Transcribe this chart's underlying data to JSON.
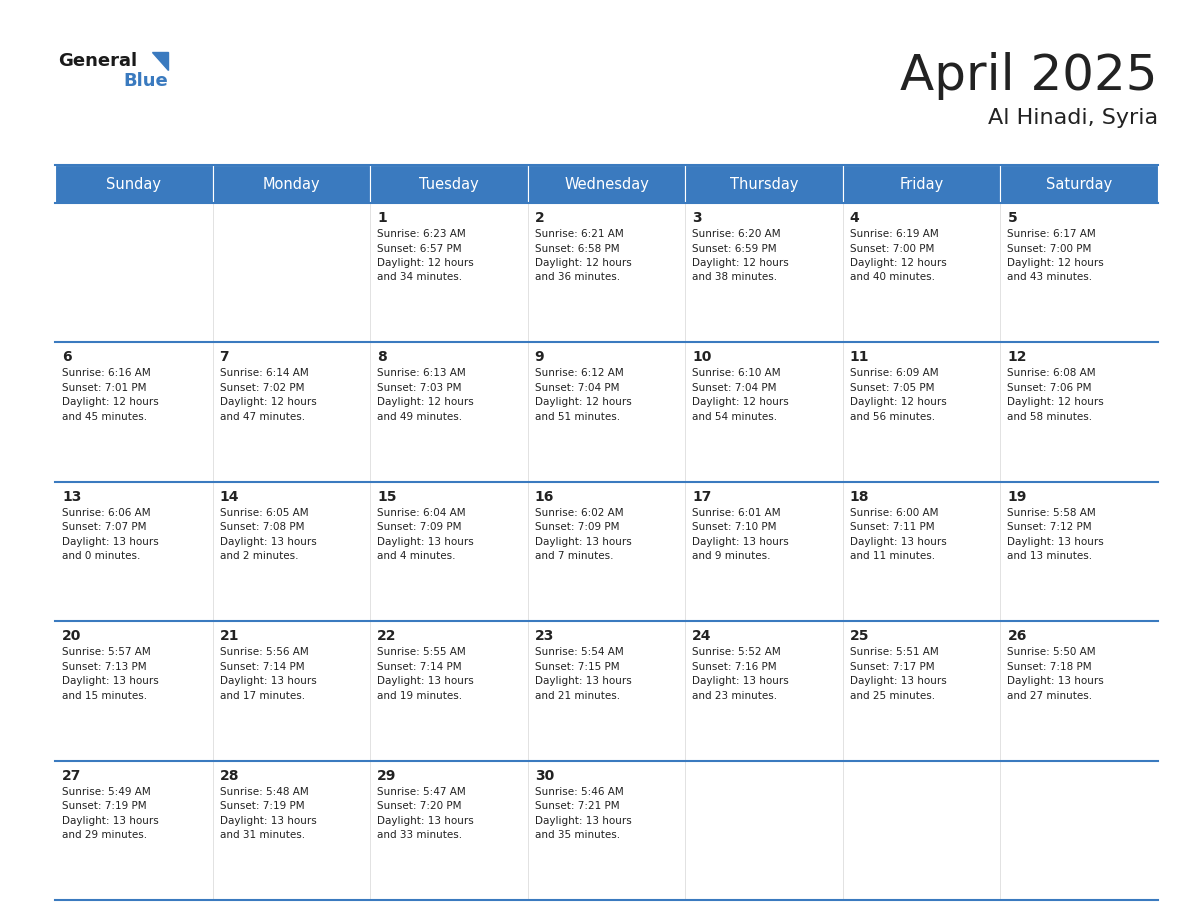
{
  "title": "April 2025",
  "subtitle": "Al Hinadi, Syria",
  "header_bg_color": "#3a7abf",
  "header_text_color": "#ffffff",
  "row_line_color": "#3a7abf",
  "cell_bg_color": "#ffffff",
  "alt_cell_bg_color": "#f0f4f8",
  "text_color": "#222222",
  "days_of_week": [
    "Sunday",
    "Monday",
    "Tuesday",
    "Wednesday",
    "Thursday",
    "Friday",
    "Saturday"
  ],
  "weeks": [
    [
      {
        "day": "",
        "sunrise": "",
        "sunset": "",
        "daylight_h": "",
        "daylight_m": ""
      },
      {
        "day": "",
        "sunrise": "",
        "sunset": "",
        "daylight_h": "",
        "daylight_m": ""
      },
      {
        "day": "1",
        "sunrise": "Sunrise: 6:23 AM",
        "sunset": "Sunset: 6:57 PM",
        "daylight_h": "Daylight: 12 hours",
        "daylight_m": "and 34 minutes."
      },
      {
        "day": "2",
        "sunrise": "Sunrise: 6:21 AM",
        "sunset": "Sunset: 6:58 PM",
        "daylight_h": "Daylight: 12 hours",
        "daylight_m": "and 36 minutes."
      },
      {
        "day": "3",
        "sunrise": "Sunrise: 6:20 AM",
        "sunset": "Sunset: 6:59 PM",
        "daylight_h": "Daylight: 12 hours",
        "daylight_m": "and 38 minutes."
      },
      {
        "day": "4",
        "sunrise": "Sunrise: 6:19 AM",
        "sunset": "Sunset: 7:00 PM",
        "daylight_h": "Daylight: 12 hours",
        "daylight_m": "and 40 minutes."
      },
      {
        "day": "5",
        "sunrise": "Sunrise: 6:17 AM",
        "sunset": "Sunset: 7:00 PM",
        "daylight_h": "Daylight: 12 hours",
        "daylight_m": "and 43 minutes."
      }
    ],
    [
      {
        "day": "6",
        "sunrise": "Sunrise: 6:16 AM",
        "sunset": "Sunset: 7:01 PM",
        "daylight_h": "Daylight: 12 hours",
        "daylight_m": "and 45 minutes."
      },
      {
        "day": "7",
        "sunrise": "Sunrise: 6:14 AM",
        "sunset": "Sunset: 7:02 PM",
        "daylight_h": "Daylight: 12 hours",
        "daylight_m": "and 47 minutes."
      },
      {
        "day": "8",
        "sunrise": "Sunrise: 6:13 AM",
        "sunset": "Sunset: 7:03 PM",
        "daylight_h": "Daylight: 12 hours",
        "daylight_m": "and 49 minutes."
      },
      {
        "day": "9",
        "sunrise": "Sunrise: 6:12 AM",
        "sunset": "Sunset: 7:04 PM",
        "daylight_h": "Daylight: 12 hours",
        "daylight_m": "and 51 minutes."
      },
      {
        "day": "10",
        "sunrise": "Sunrise: 6:10 AM",
        "sunset": "Sunset: 7:04 PM",
        "daylight_h": "Daylight: 12 hours",
        "daylight_m": "and 54 minutes."
      },
      {
        "day": "11",
        "sunrise": "Sunrise: 6:09 AM",
        "sunset": "Sunset: 7:05 PM",
        "daylight_h": "Daylight: 12 hours",
        "daylight_m": "and 56 minutes."
      },
      {
        "day": "12",
        "sunrise": "Sunrise: 6:08 AM",
        "sunset": "Sunset: 7:06 PM",
        "daylight_h": "Daylight: 12 hours",
        "daylight_m": "and 58 minutes."
      }
    ],
    [
      {
        "day": "13",
        "sunrise": "Sunrise: 6:06 AM",
        "sunset": "Sunset: 7:07 PM",
        "daylight_h": "Daylight: 13 hours",
        "daylight_m": "and 0 minutes."
      },
      {
        "day": "14",
        "sunrise": "Sunrise: 6:05 AM",
        "sunset": "Sunset: 7:08 PM",
        "daylight_h": "Daylight: 13 hours",
        "daylight_m": "and 2 minutes."
      },
      {
        "day": "15",
        "sunrise": "Sunrise: 6:04 AM",
        "sunset": "Sunset: 7:09 PM",
        "daylight_h": "Daylight: 13 hours",
        "daylight_m": "and 4 minutes."
      },
      {
        "day": "16",
        "sunrise": "Sunrise: 6:02 AM",
        "sunset": "Sunset: 7:09 PM",
        "daylight_h": "Daylight: 13 hours",
        "daylight_m": "and 7 minutes."
      },
      {
        "day": "17",
        "sunrise": "Sunrise: 6:01 AM",
        "sunset": "Sunset: 7:10 PM",
        "daylight_h": "Daylight: 13 hours",
        "daylight_m": "and 9 minutes."
      },
      {
        "day": "18",
        "sunrise": "Sunrise: 6:00 AM",
        "sunset": "Sunset: 7:11 PM",
        "daylight_h": "Daylight: 13 hours",
        "daylight_m": "and 11 minutes."
      },
      {
        "day": "19",
        "sunrise": "Sunrise: 5:58 AM",
        "sunset": "Sunset: 7:12 PM",
        "daylight_h": "Daylight: 13 hours",
        "daylight_m": "and 13 minutes."
      }
    ],
    [
      {
        "day": "20",
        "sunrise": "Sunrise: 5:57 AM",
        "sunset": "Sunset: 7:13 PM",
        "daylight_h": "Daylight: 13 hours",
        "daylight_m": "and 15 minutes."
      },
      {
        "day": "21",
        "sunrise": "Sunrise: 5:56 AM",
        "sunset": "Sunset: 7:14 PM",
        "daylight_h": "Daylight: 13 hours",
        "daylight_m": "and 17 minutes."
      },
      {
        "day": "22",
        "sunrise": "Sunrise: 5:55 AM",
        "sunset": "Sunset: 7:14 PM",
        "daylight_h": "Daylight: 13 hours",
        "daylight_m": "and 19 minutes."
      },
      {
        "day": "23",
        "sunrise": "Sunrise: 5:54 AM",
        "sunset": "Sunset: 7:15 PM",
        "daylight_h": "Daylight: 13 hours",
        "daylight_m": "and 21 minutes."
      },
      {
        "day": "24",
        "sunrise": "Sunrise: 5:52 AM",
        "sunset": "Sunset: 7:16 PM",
        "daylight_h": "Daylight: 13 hours",
        "daylight_m": "and 23 minutes."
      },
      {
        "day": "25",
        "sunrise": "Sunrise: 5:51 AM",
        "sunset": "Sunset: 7:17 PM",
        "daylight_h": "Daylight: 13 hours",
        "daylight_m": "and 25 minutes."
      },
      {
        "day": "26",
        "sunrise": "Sunrise: 5:50 AM",
        "sunset": "Sunset: 7:18 PM",
        "daylight_h": "Daylight: 13 hours",
        "daylight_m": "and 27 minutes."
      }
    ],
    [
      {
        "day": "27",
        "sunrise": "Sunrise: 5:49 AM",
        "sunset": "Sunset: 7:19 PM",
        "daylight_h": "Daylight: 13 hours",
        "daylight_m": "and 29 minutes."
      },
      {
        "day": "28",
        "sunrise": "Sunrise: 5:48 AM",
        "sunset": "Sunset: 7:19 PM",
        "daylight_h": "Daylight: 13 hours",
        "daylight_m": "and 31 minutes."
      },
      {
        "day": "29",
        "sunrise": "Sunrise: 5:47 AM",
        "sunset": "Sunset: 7:20 PM",
        "daylight_h": "Daylight: 13 hours",
        "daylight_m": "and 33 minutes."
      },
      {
        "day": "30",
        "sunrise": "Sunrise: 5:46 AM",
        "sunset": "Sunset: 7:21 PM",
        "daylight_h": "Daylight: 13 hours",
        "daylight_m": "and 35 minutes."
      },
      {
        "day": "",
        "sunrise": "",
        "sunset": "",
        "daylight_h": "",
        "daylight_m": ""
      },
      {
        "day": "",
        "sunrise": "",
        "sunset": "",
        "daylight_h": "",
        "daylight_m": ""
      },
      {
        "day": "",
        "sunrise": "",
        "sunset": "",
        "daylight_h": "",
        "daylight_m": ""
      }
    ]
  ]
}
